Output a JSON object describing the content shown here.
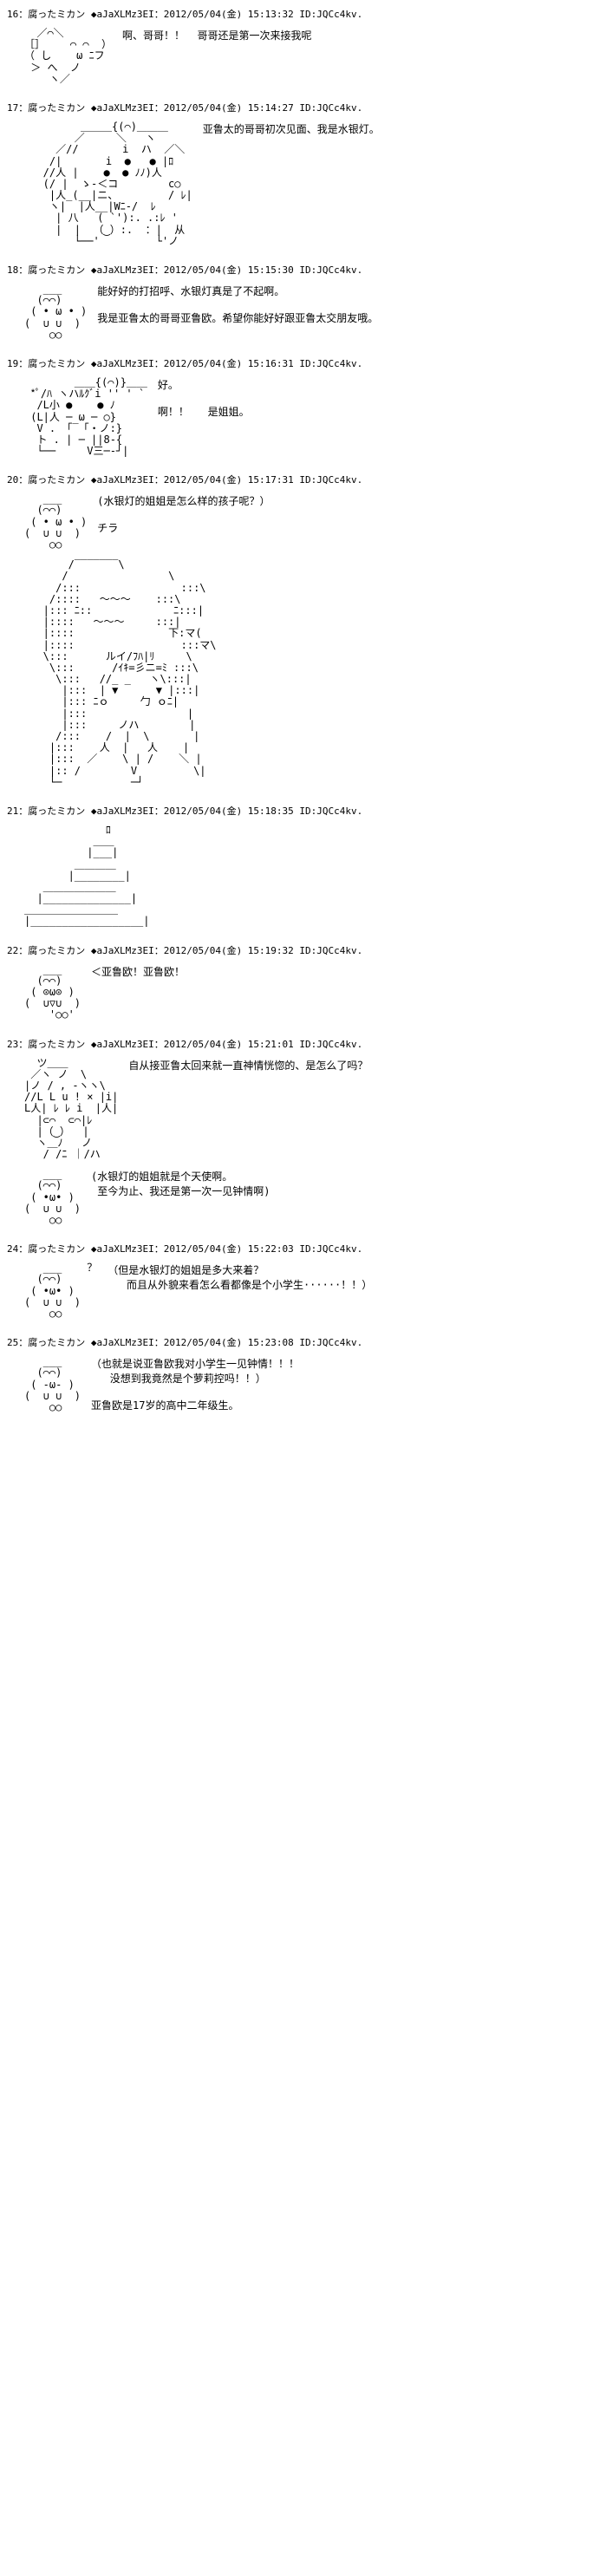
{
  "posts": [
    {
      "num": "16",
      "name": "腐ったミカン ◆aJaXLMz3EI",
      "date": "2012/05/04(金) 15:13:32",
      "id": "ID:JQCc4kv.",
      "aa": "  ／⌒＼\n［］    ⌒ ⌒  ）\n（ し    ω ﾆフ\n ＞ へ  ノ\n    ヽ／",
      "line1": "啊、哥哥！！  哥哥还是第一次来接我呢"
    },
    {
      "num": "17",
      "name": "腐ったミカン ◆aJaXLMz3EI",
      "date": "2012/05/04(金) 15:14:27",
      "id": "ID:JQCc4kv.",
      "aa": "         ＿＿＿{(⌒)＿＿＿\n        ／     ＼   ヽ\n     ／//       i  ハ  ／＼\n    /|       i  ●   ● |ﾛ\n   //人 |    ●  ● ﾉﾉ)人\n   (/ |  ゝ-＜コ        c○\n    |人_(__|ニ、        / ﾚ|\n    ヽ|  |人__|Wﾆ-/  ﾚ\n     | 八   ( `'):. .:ﾚ '\n     |  |  （‿）:.  ：|  从\n        └──'         └'ノ",
      "line1": "亚鲁太的哥哥初次见面、我是水银灯。"
    },
    {
      "num": "18",
      "name": "腐ったミカン ◆aJaXLMz3EI",
      "date": "2012/05/04(金) 15:15:30",
      "id": "ID:JQCc4kv.",
      "aa": "   ___\n  (⌒⌒)\n ( • ω • )\n(  ∪ ∪  )\n    ○○",
      "line1": "能好好的打招呼、水银灯真是了不起啊。",
      "line2": "我是亚鲁太的哥哥亚鲁欧。希望你能好好跟亚鲁太交朋友哦。"
    },
    {
      "num": "19",
      "name": "腐ったミカン ◆aJaXLMz3EI",
      "date": "2012/05/04(金) 15:16:31",
      "id": "ID:JQCc4kv.",
      "aa": "        ＿＿{(⌒)}＿＿\n *ﾟ/ﾊ ヽハﾙｸﾞi '' ' `\n  /L小 ●    ● ﾉ\n (L|人 ─ ω ─ ○}\n  V . 「‾「・ノ:}\n  ト . | ─ ||8-{\n  └──     V三─‐┘|",
      "line1": "好。",
      "line2": "啊！！   是姐姐。"
    },
    {
      "num": "20",
      "name": "腐ったミカン ◆aJaXLMz3EI",
      "date": "2012/05/04(金) 15:17:31",
      "id": "ID:JQCc4kv.",
      "aa": "   ___\n  (⌒⌒)\n ( • ω • )\n(  ∪ ∪  )\n    ○○",
      "line1": "(水银灯的姐姐是怎么样的孩子呢？）",
      "line2": "チラ",
      "aa2": "       /‾‾‾‾‾‾‾\\ \n      /                \\\n     /:::                :::\\\n    /::::   ～～～    :::\\\n   |::: ﾆ::             ﾆ:::|\n   |::::   ～～～     :::|\n   |::::               下:マ(\n   |::::                 :::マ\\\n   \\:::      ルイ/ﾌﾊ|ﾘ     \\\n    \\:::      /ｲｷ=彡ニ=ﾐ :::\\\n     \\:::   //_ _   ヽ\\:::|\n      |:::  | ▼      ▼ |:::|\n      |::: ﾆｏ     勹 ｏﾆ|\n      |:::                |\n      |:::     ノハ        |\n     /:::    /  |  \\       |\n    |:::    人  |   人    |\n    |:::  ／    \\ | /    ＼ |\n    |:: /        V         \\|\n    └─           ─┘"
    },
    {
      "num": "21",
      "name": "腐ったミカン ◆aJaXLMz3EI",
      "date": "2012/05/04(金) 15:18:35",
      "id": "ID:JQCc4kv.",
      "aa": "             ﾛ\n           ＿＿\n          |___|\n        ＿＿＿＿\n       |________|\n   ＿＿＿＿＿＿＿\n  |______________|\n＿＿＿＿＿＿＿＿＿\n|__________________|"
    },
    {
      "num": "22",
      "name": "腐ったミカン ◆aJaXLMz3EI",
      "date": "2012/05/04(金) 15:19:32",
      "id": "ID:JQCc4kv.",
      "aa": "   ___\n  (⌒⌒)\n ( ⊙ω⊙ )\n(  ∪▽∪  )\n    '○○'",
      "line1": "＜亚鲁欧！亚鲁欧！"
    },
    {
      "num": "23",
      "name": "腐ったミカン ◆aJaXLMz3EI",
      "date": "2012/05/04(金) 15:21:01",
      "id": "ID:JQCc4kv.",
      "aa": "  ツ＿＿\n ／ヽ ノ  \\\n|ノ / , -ヽヽ\\\n//L L u ! × |i|\nL人| ﾚ ﾚ i  |人|\n  |⊂⌒  ⊂⌒|ﾚ\n  |（‿）  |\n  ヽ＿ﾉ   ノ\n   / /ﾆ ｜/ハ",
      "line1": "自从接亚鲁太回来就一直神情恍惚的、是怎么了吗？",
      "aa2": "   ___\n  (⌒⌒)\n ( •ω• )\n(  ∪ ∪  )\n    ○○",
      "line2": "(水银灯的姐姐就是个天使啊。\n 至今为止、我还是第一次一见钟情啊)"
    },
    {
      "num": "24",
      "name": "腐ったミカン ◆aJaXLMz3EI",
      "date": "2012/05/04(金) 15:22:03",
      "id": "ID:JQCc4kv.",
      "aa": "   ___    ？\n  (⌒⌒)\n ( •ω• )\n(  ∪ ∪  )\n    ○○",
      "line1": "（但是水银灯的姐姐是多大来着？\n   而且从外貌来看怎么看都像是个小学生······！！）"
    },
    {
      "num": "25",
      "name": "腐ったミカン ◆aJaXLMz3EI",
      "date": "2012/05/04(金) 15:23:08",
      "id": "ID:JQCc4kv.",
      "aa": "   ___\n  (⌒⌒)\n ( -ω- )\n(  ∪ ∪  )\n    ○○",
      "line1": "（也就是说亚鲁欧我对小学生一见钟情！！！\n   没想到我竟然是个萝莉控吗！！）",
      "line2": "亚鲁欧是17岁的高中二年级生。"
    }
  ]
}
